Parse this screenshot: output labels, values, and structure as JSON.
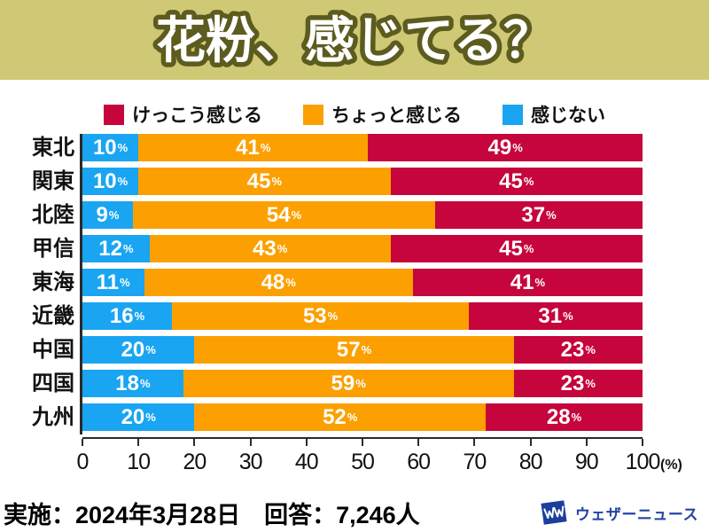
{
  "header": {
    "title": "花粉、感じてる？"
  },
  "legend": [
    {
      "label": "けっこう感じる",
      "color": "#c5053b"
    },
    {
      "label": "ちょっと感じる",
      "color": "#fba000"
    },
    {
      "label": "感じない",
      "color": "#19a5f2"
    }
  ],
  "chart_data": {
    "type": "bar",
    "orientation": "horizontal-stacked",
    "title": "花粉、感じてる？",
    "categories": [
      "東北",
      "関東",
      "北陸",
      "甲信",
      "東海",
      "近畿",
      "中国",
      "四国",
      "九州"
    ],
    "series": [
      {
        "name": "感じない",
        "color": "#19a5f2",
        "values": [
          10,
          10,
          9,
          12,
          11,
          16,
          20,
          18,
          20
        ]
      },
      {
        "name": "ちょっと感じる",
        "color": "#fba000",
        "values": [
          41,
          45,
          54,
          43,
          48,
          53,
          57,
          59,
          52
        ]
      },
      {
        "name": "けっこう感じる",
        "color": "#c5053b",
        "values": [
          49,
          45,
          37,
          45,
          41,
          31,
          23,
          23,
          28
        ]
      }
    ],
    "value_suffix": "%",
    "x_ticks": [
      0,
      10,
      20,
      30,
      40,
      50,
      60,
      70,
      80,
      90,
      100
    ],
    "x_unit": "(%)",
    "xlim": [
      0,
      100
    ],
    "grid": false,
    "legend_position": "top"
  },
  "colors": {
    "header_background": "#cfc976",
    "title_outline": "#5d5c1f",
    "axis": "#2b2b2b",
    "logo_blue": "#1c3f9c"
  },
  "footer": {
    "survey_info": "実施：2024年3月28日　回答：7,246人",
    "logo_text": "ウェザーニュース"
  }
}
